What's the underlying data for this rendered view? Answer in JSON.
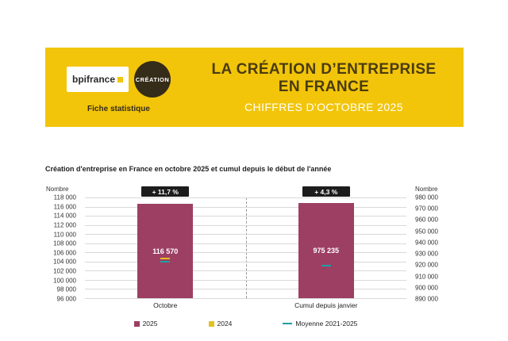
{
  "banner": {
    "logo": "bpifrance",
    "badge": "CRÉATION",
    "tagline": "Fiche statistique",
    "title_line1": "LA CRÉATION D’ENTREPRISE",
    "title_line2": "EN FRANCE",
    "subtitle": "CHIFFRES D'OCTOBRE 2025"
  },
  "chart_data": {
    "type": "bar",
    "title": "Création d'entreprise en France en octobre 2025 et cumul depuis le début de l'année",
    "left_axis": {
      "label": "Nombre",
      "min": 96000,
      "max": 118000,
      "step": 2000,
      "tick_labels": [
        "118 000",
        "116 000",
        "114 000",
        "112 000",
        "110 000",
        "108 000",
        "106 000",
        "104 000",
        "102 000",
        "100 000",
        "98 000",
        "96 000"
      ]
    },
    "right_axis": {
      "label": "Nombre",
      "min": 890000,
      "max": 980000,
      "step": 10000,
      "tick_labels": [
        "980 000",
        "970 000",
        "960 000",
        "950 000",
        "940 000",
        "930 000",
        "920 000",
        "910 000",
        "900 000",
        "890 000"
      ]
    },
    "bars": [
      {
        "category": "Octobre",
        "series": "2025",
        "value": 116570,
        "value_label": "116 570",
        "badge": "+ 11,7 %",
        "axis": "left"
      },
      {
        "category": "Cumul depuis janvier",
        "series": "2025",
        "value": 975235,
        "value_label": "975 235",
        "badge": "+ 4,3 %",
        "axis": "right"
      }
    ],
    "markers": [
      {
        "bar": 0,
        "series": "2024",
        "value": 104700,
        "axis": "left",
        "color": "#e3c21d"
      },
      {
        "bar": 0,
        "series": "Moyenne 2021-2025",
        "value": 104000,
        "axis": "left",
        "color": "#1f9fa3"
      },
      {
        "bar": 1,
        "series": "Moyenne 2021-2025",
        "value": 919000,
        "axis": "right",
        "color": "#1f9fa3"
      }
    ],
    "legend": [
      {
        "label": "2025",
        "color": "#9d3f63",
        "shape": "square"
      },
      {
        "label": "2024",
        "color": "#e3c21d",
        "shape": "square"
      },
      {
        "label": "Moyenne 2021-2025",
        "color": "#1f9fa3",
        "shape": "line"
      }
    ],
    "colors": {
      "bar": "#9d3f63",
      "badge_bg": "#1c1c1c",
      "badge_text": "#ffffff"
    }
  }
}
